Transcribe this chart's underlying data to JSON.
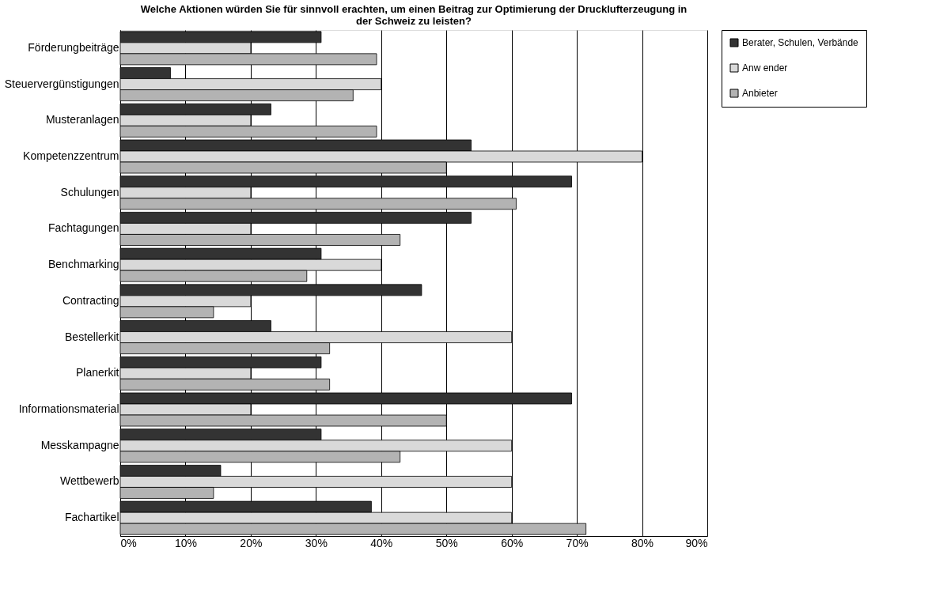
{
  "chart_data": {
    "type": "bar",
    "orientation": "horizontal",
    "title": "Welche Aktionen würden Sie für sinnvoll erachten, um einen Beitrag zur Optimierung der Drucklufterzeugung in der Schweiz zu leisten?",
    "categories": [
      "Förderungbeiträge",
      "Steuervergünstigungen",
      "Musteranlagen",
      "Kompetenzzentrum",
      "Schulungen",
      "Fachtagungen",
      "Benchmarking",
      "Contracting",
      "Bestellerkit",
      "Planerkit",
      "Informationsmaterial",
      "Messkampagne",
      "Wettbewerb",
      "Fachartikel"
    ],
    "series": [
      {
        "name": "Berater, Schulen, Verbände",
        "color": "#333333",
        "values": [
          30.8,
          7.7,
          23.1,
          53.8,
          69.2,
          53.8,
          30.8,
          46.2,
          23.1,
          30.8,
          69.2,
          30.8,
          15.4,
          38.5
        ]
      },
      {
        "name": "Anw ender",
        "color": "#d9d9d9",
        "values": [
          20,
          40,
          20,
          80,
          20,
          20,
          40,
          20,
          60,
          20,
          20,
          60,
          60,
          60
        ]
      },
      {
        "name": "Anbieter",
        "color": "#b3b3b3",
        "values": [
          39.3,
          35.7,
          39.3,
          50,
          60.7,
          42.9,
          28.6,
          14.3,
          32.1,
          32.1,
          50,
          42.9,
          14.3,
          71.4
        ]
      }
    ],
    "xlim": [
      0,
      90
    ],
    "xticks": [
      {
        "value": 0,
        "label": "0%"
      },
      {
        "value": 10,
        "label": "10%"
      },
      {
        "value": 20,
        "label": "20%"
      },
      {
        "value": 30,
        "label": "30%"
      },
      {
        "value": 40,
        "label": "40%"
      },
      {
        "value": 50,
        "label": "50%"
      },
      {
        "value": 60,
        "label": "60%"
      },
      {
        "value": 70,
        "label": "70%"
      },
      {
        "value": 80,
        "label": "80%"
      },
      {
        "value": 90,
        "label": "90%"
      }
    ],
    "grid": "x",
    "legend": "right"
  }
}
